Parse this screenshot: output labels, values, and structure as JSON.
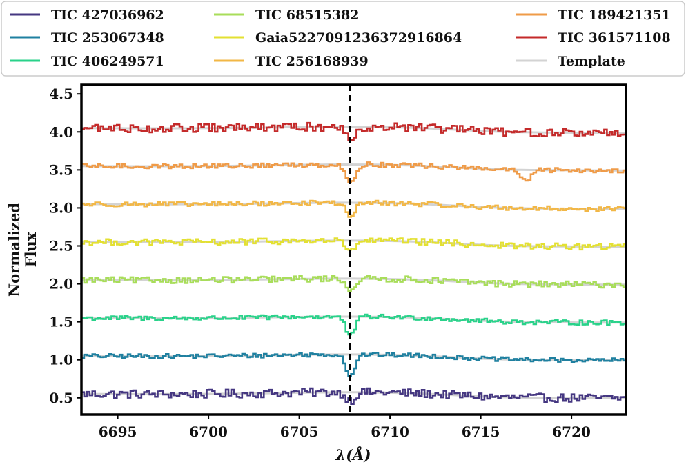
{
  "chart_data": {
    "type": "line",
    "title": "",
    "xlabel": "λ(Å)",
    "ylabel_lines": [
      "Normalized",
      "Flux"
    ],
    "xlim": [
      6693,
      6723
    ],
    "ylim": [
      0.28,
      4.62
    ],
    "xticks": [
      6695,
      6700,
      6705,
      6710,
      6715,
      6720
    ],
    "yticks": [
      0.5,
      1.0,
      1.5,
      2.0,
      2.5,
      3.0,
      3.5,
      4.0,
      4.5
    ],
    "ytick_labels": [
      "0.5",
      "1.0",
      "1.5",
      "2.0",
      "2.5",
      "3.0",
      "3.5",
      "4.0",
      "4.5"
    ],
    "reference_line": {
      "x": 6707.8,
      "style": "dashed"
    },
    "legend": {
      "location": "top",
      "columns": 3
    },
    "series": [
      {
        "name": "TIC 427036962",
        "color": "#453781",
        "offset": 0.55,
        "depth": 0.11,
        "noise": 0.055,
        "slope": -0.05,
        "extra_dip": 0.0
      },
      {
        "name": "TIC 253067348",
        "color": "#1f80a0",
        "offset": 1.05,
        "depth": 0.28,
        "noise": 0.028,
        "slope": -0.06,
        "extra_dip": 0.0
      },
      {
        "name": "TIC 406249571",
        "color": "#29d28a",
        "offset": 1.55,
        "depth": 0.26,
        "noise": 0.03,
        "slope": -0.07,
        "extra_dip": 0.0
      },
      {
        "name": "TIC 68515382",
        "color": "#a8dd5a",
        "offset": 2.05,
        "depth": 0.15,
        "noise": 0.04,
        "slope": -0.07,
        "extra_dip": 0.0
      },
      {
        "name": "Gaia5227091236372916864",
        "color": "#e3e032",
        "offset": 2.55,
        "depth": 0.15,
        "noise": 0.04,
        "slope": -0.07,
        "extra_dip": 0.0
      },
      {
        "name": "TIC 256168939",
        "color": "#f2b746",
        "offset": 3.05,
        "depth": 0.18,
        "noise": 0.03,
        "slope": -0.08,
        "extra_dip": 0.0
      },
      {
        "name": "TIC 189421351",
        "color": "#ef9b48",
        "offset": 3.55,
        "depth": 0.26,
        "noise": 0.03,
        "slope": -0.06,
        "extra_dip": 0.15
      },
      {
        "name": "TIC 361571108",
        "color": "#c42a2a",
        "offset": 4.05,
        "depth": 0.17,
        "noise": 0.055,
        "slope": -0.08,
        "extra_dip": 0.0
      }
    ],
    "template": {
      "name": "Template",
      "color": "#d3d3d3"
    }
  }
}
